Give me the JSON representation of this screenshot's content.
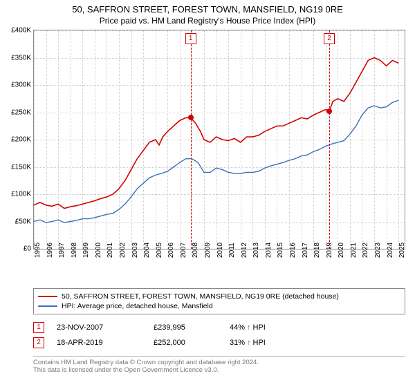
{
  "title_line1": "50, SAFFRON STREET, FOREST TOWN, MANSFIELD, NG19 0RE",
  "title_line2": "Price paid vs. HM Land Registry's House Price Index (HPI)",
  "chart": {
    "type": "line",
    "x_years": [
      1995,
      1996,
      1997,
      1998,
      1999,
      2000,
      2001,
      2002,
      2003,
      2004,
      2005,
      2006,
      2007,
      2008,
      2009,
      2010,
      2011,
      2012,
      2013,
      2014,
      2015,
      2016,
      2017,
      2018,
      2019,
      2020,
      2021,
      2022,
      2023,
      2024,
      2025
    ],
    "xlim": [
      1995,
      2025.5
    ],
    "ylim": [
      0,
      400000
    ],
    "ytick_step": 50000,
    "yticks": [
      "£0",
      "£50K",
      "£100K",
      "£150K",
      "£200K",
      "£250K",
      "£300K",
      "£350K",
      "£400K"
    ],
    "grid_color": "#cccccc",
    "border_color": "#888888",
    "background_color": "#ffffff",
    "series": [
      {
        "key": "price_paid",
        "label": "50, SAFFRON STREET, FOREST TOWN, MANSFIELD, NG19 0RE (detached house)",
        "color": "#d40000",
        "line_width": 1.6,
        "points": [
          [
            1995.0,
            80000
          ],
          [
            1995.5,
            85000
          ],
          [
            1996.0,
            80000
          ],
          [
            1996.5,
            78000
          ],
          [
            1997.0,
            82000
          ],
          [
            1997.5,
            74000
          ],
          [
            1998.0,
            77000
          ],
          [
            1998.5,
            79000
          ],
          [
            1999.0,
            82000
          ],
          [
            1999.5,
            85000
          ],
          [
            2000.0,
            88000
          ],
          [
            2000.5,
            92000
          ],
          [
            2001.0,
            95000
          ],
          [
            2001.5,
            100000
          ],
          [
            2002.0,
            110000
          ],
          [
            2002.5,
            125000
          ],
          [
            2003.0,
            145000
          ],
          [
            2003.5,
            165000
          ],
          [
            2004.0,
            180000
          ],
          [
            2004.5,
            195000
          ],
          [
            2005.0,
            200000
          ],
          [
            2005.3,
            190000
          ],
          [
            2005.6,
            205000
          ],
          [
            2006.0,
            215000
          ],
          [
            2006.5,
            225000
          ],
          [
            2007.0,
            235000
          ],
          [
            2007.5,
            240000
          ],
          [
            2007.9,
            239995
          ],
          [
            2008.3,
            230000
          ],
          [
            2008.7,
            215000
          ],
          [
            2009.0,
            200000
          ],
          [
            2009.5,
            195000
          ],
          [
            2010.0,
            205000
          ],
          [
            2010.5,
            200000
          ],
          [
            2011.0,
            198000
          ],
          [
            2011.5,
            202000
          ],
          [
            2012.0,
            195000
          ],
          [
            2012.5,
            205000
          ],
          [
            2013.0,
            205000
          ],
          [
            2013.5,
            208000
          ],
          [
            2014.0,
            215000
          ],
          [
            2014.5,
            220000
          ],
          [
            2015.0,
            225000
          ],
          [
            2015.5,
            225000
          ],
          [
            2016.0,
            230000
          ],
          [
            2016.5,
            235000
          ],
          [
            2017.0,
            240000
          ],
          [
            2017.5,
            238000
          ],
          [
            2018.0,
            245000
          ],
          [
            2018.5,
            250000
          ],
          [
            2019.0,
            255000
          ],
          [
            2019.3,
            252000
          ],
          [
            2019.6,
            270000
          ],
          [
            2020.0,
            275000
          ],
          [
            2020.5,
            270000
          ],
          [
            2021.0,
            285000
          ],
          [
            2021.5,
            305000
          ],
          [
            2022.0,
            325000
          ],
          [
            2022.5,
            345000
          ],
          [
            2023.0,
            350000
          ],
          [
            2023.5,
            345000
          ],
          [
            2024.0,
            335000
          ],
          [
            2024.5,
            345000
          ],
          [
            2025.0,
            340000
          ]
        ]
      },
      {
        "key": "hpi",
        "label": "HPI: Average price, detached house, Mansfield",
        "color": "#3a6fb7",
        "line_width": 1.4,
        "points": [
          [
            1995.0,
            50000
          ],
          [
            1995.5,
            53000
          ],
          [
            1996.0,
            48000
          ],
          [
            1996.5,
            50000
          ],
          [
            1997.0,
            53000
          ],
          [
            1997.5,
            48000
          ],
          [
            1998.0,
            50000
          ],
          [
            1998.5,
            52000
          ],
          [
            1999.0,
            55000
          ],
          [
            1999.5,
            55000
          ],
          [
            2000.0,
            57000
          ],
          [
            2000.5,
            60000
          ],
          [
            2001.0,
            63000
          ],
          [
            2001.5,
            65000
          ],
          [
            2002.0,
            72000
          ],
          [
            2002.5,
            82000
          ],
          [
            2003.0,
            95000
          ],
          [
            2003.5,
            110000
          ],
          [
            2004.0,
            120000
          ],
          [
            2004.5,
            130000
          ],
          [
            2005.0,
            135000
          ],
          [
            2005.5,
            138000
          ],
          [
            2006.0,
            142000
          ],
          [
            2006.5,
            150000
          ],
          [
            2007.0,
            158000
          ],
          [
            2007.5,
            165000
          ],
          [
            2008.0,
            165000
          ],
          [
            2008.5,
            158000
          ],
          [
            2009.0,
            140000
          ],
          [
            2009.5,
            140000
          ],
          [
            2010.0,
            148000
          ],
          [
            2010.5,
            145000
          ],
          [
            2011.0,
            140000
          ],
          [
            2011.5,
            138000
          ],
          [
            2012.0,
            138000
          ],
          [
            2012.5,
            140000
          ],
          [
            2013.0,
            140000
          ],
          [
            2013.5,
            142000
          ],
          [
            2014.0,
            148000
          ],
          [
            2014.5,
            152000
          ],
          [
            2015.0,
            155000
          ],
          [
            2015.5,
            158000
          ],
          [
            2016.0,
            162000
          ],
          [
            2016.5,
            165000
          ],
          [
            2017.0,
            170000
          ],
          [
            2017.5,
            172000
          ],
          [
            2018.0,
            178000
          ],
          [
            2018.5,
            182000
          ],
          [
            2019.0,
            188000
          ],
          [
            2019.5,
            192000
          ],
          [
            2020.0,
            195000
          ],
          [
            2020.5,
            198000
          ],
          [
            2021.0,
            210000
          ],
          [
            2021.5,
            225000
          ],
          [
            2022.0,
            245000
          ],
          [
            2022.5,
            258000
          ],
          [
            2023.0,
            262000
          ],
          [
            2023.5,
            258000
          ],
          [
            2024.0,
            260000
          ],
          [
            2024.5,
            268000
          ],
          [
            2025.0,
            272000
          ]
        ]
      }
    ],
    "event_markers": [
      {
        "n": "1",
        "x": 2007.9,
        "y": 239995,
        "color": "#d40000"
      },
      {
        "n": "2",
        "x": 2019.3,
        "y": 252000,
        "color": "#d40000"
      }
    ]
  },
  "legend": {
    "rows": [
      {
        "color": "#d40000",
        "label": "50, SAFFRON STREET, FOREST TOWN, MANSFIELD, NG19 0RE (detached house)"
      },
      {
        "color": "#3a6fb7",
        "label": "HPI: Average price, detached house, Mansfield"
      }
    ]
  },
  "events_table": [
    {
      "n": "1",
      "color": "#d40000",
      "date": "23-NOV-2007",
      "price": "£239,995",
      "pct": "44%",
      "arrow": "↑",
      "suffix": "HPI"
    },
    {
      "n": "2",
      "color": "#d40000",
      "date": "18-APR-2019",
      "price": "£252,000",
      "pct": "31%",
      "arrow": "↑",
      "suffix": "HPI"
    }
  ],
  "footer": {
    "line1": "Contains HM Land Registry data © Crown copyright and database right 2024.",
    "line2": "This data is licensed under the Open Government Licence v3.0."
  }
}
